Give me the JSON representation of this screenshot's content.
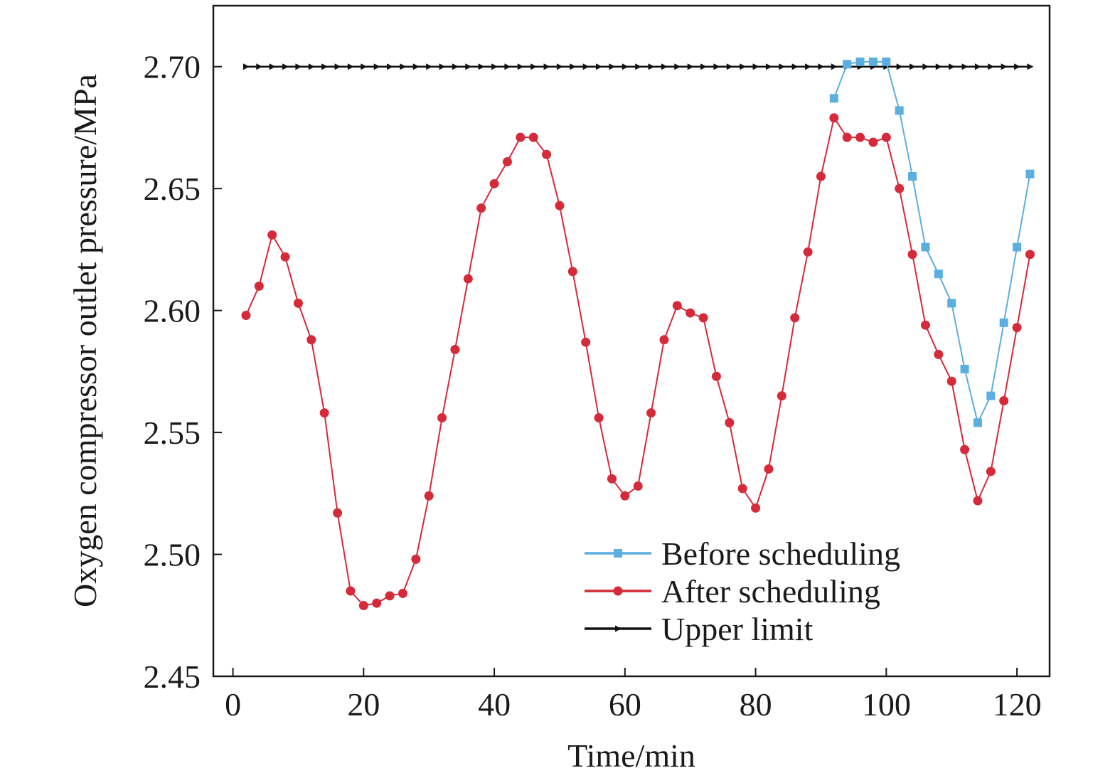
{
  "chart_data": {
    "type": "line",
    "title": "",
    "xlabel": "Time/min",
    "ylabel": "Oxygen compressor outlet pressure/MPa",
    "xlim": [
      -3,
      125
    ],
    "ylim": [
      2.45,
      2.725
    ],
    "xticks": [
      0,
      20,
      40,
      60,
      80,
      100,
      120
    ],
    "yticks": [
      2.45,
      2.5,
      2.55,
      2.6,
      2.65,
      2.7
    ],
    "xtick_labels": [
      "0",
      "20",
      "40",
      "60",
      "80",
      "100",
      "120"
    ],
    "ytick_labels": [
      "2.45",
      "2.50",
      "2.55",
      "2.60",
      "2.65",
      "2.70"
    ],
    "grid": false,
    "legend_position": "bottom-right",
    "series": [
      {
        "name": "Before scheduling",
        "color": "#5aaee0",
        "marker": "square",
        "x": [
          92,
          94,
          96,
          98,
          100,
          102,
          104,
          106,
          108,
          110,
          112,
          114,
          116,
          118,
          120,
          122
        ],
        "values": [
          2.687,
          2.701,
          2.702,
          2.702,
          2.702,
          2.682,
          2.655,
          2.626,
          2.615,
          2.603,
          2.576,
          2.554,
          2.565,
          2.595,
          2.626,
          2.656
        ]
      },
      {
        "name": "After scheduling",
        "color": "#d42a3a",
        "marker": "circle",
        "x": [
          2,
          4,
          6,
          8,
          10,
          12,
          14,
          16,
          18,
          20,
          22,
          24,
          26,
          28,
          30,
          32,
          34,
          36,
          38,
          40,
          42,
          44,
          46,
          48,
          50,
          52,
          54,
          56,
          58,
          60,
          62,
          64,
          66,
          68,
          70,
          72,
          74,
          76,
          78,
          80,
          82,
          84,
          86,
          88,
          90,
          92,
          94,
          96,
          98,
          100,
          102,
          104,
          106,
          108,
          110,
          112,
          114,
          116,
          118,
          120,
          122
        ],
        "values": [
          2.598,
          2.61,
          2.631,
          2.622,
          2.603,
          2.588,
          2.558,
          2.517,
          2.485,
          2.479,
          2.48,
          2.483,
          2.484,
          2.498,
          2.524,
          2.556,
          2.584,
          2.613,
          2.642,
          2.652,
          2.661,
          2.671,
          2.671,
          2.664,
          2.643,
          2.616,
          2.587,
          2.556,
          2.531,
          2.524,
          2.528,
          2.558,
          2.588,
          2.602,
          2.599,
          2.597,
          2.573,
          2.554,
          2.527,
          2.519,
          2.535,
          2.565,
          2.597,
          2.624,
          2.655,
          2.679,
          2.671,
          2.671,
          2.669,
          2.671,
          2.65,
          2.623,
          2.594,
          2.582,
          2.571,
          2.543,
          2.522,
          2.534,
          2.563,
          2.593,
          2.623
        ]
      },
      {
        "name": "Upper limit",
        "color": "#111111",
        "marker": "triangle-right",
        "x": [
          2,
          4,
          6,
          8,
          10,
          12,
          14,
          16,
          18,
          20,
          22,
          24,
          26,
          28,
          30,
          32,
          34,
          36,
          38,
          40,
          42,
          44,
          46,
          48,
          50,
          52,
          54,
          56,
          58,
          60,
          62,
          64,
          66,
          68,
          70,
          72,
          74,
          76,
          78,
          80,
          82,
          84,
          86,
          88,
          90,
          92,
          94,
          96,
          98,
          100,
          102,
          104,
          106,
          108,
          110,
          112,
          114,
          116,
          118,
          120,
          122
        ],
        "values": [
          2.7,
          2.7,
          2.7,
          2.7,
          2.7,
          2.7,
          2.7,
          2.7,
          2.7,
          2.7,
          2.7,
          2.7,
          2.7,
          2.7,
          2.7,
          2.7,
          2.7,
          2.7,
          2.7,
          2.7,
          2.7,
          2.7,
          2.7,
          2.7,
          2.7,
          2.7,
          2.7,
          2.7,
          2.7,
          2.7,
          2.7,
          2.7,
          2.7,
          2.7,
          2.7,
          2.7,
          2.7,
          2.7,
          2.7,
          2.7,
          2.7,
          2.7,
          2.7,
          2.7,
          2.7,
          2.7,
          2.7,
          2.7,
          2.7,
          2.7,
          2.7,
          2.7,
          2.7,
          2.7,
          2.7,
          2.7,
          2.7,
          2.7,
          2.7,
          2.7,
          2.7
        ]
      }
    ]
  }
}
